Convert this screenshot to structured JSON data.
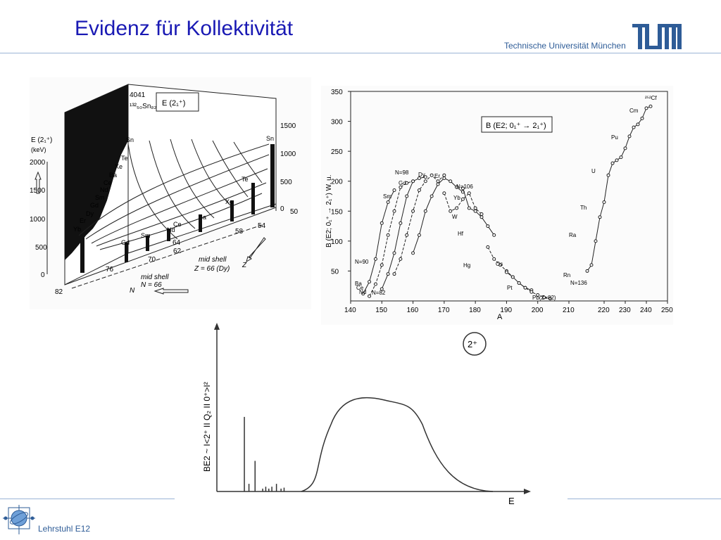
{
  "header": {
    "title": "Evidenz für Kollektivität",
    "university": "Technische Universität München",
    "brand_color": "#1a1ab4",
    "accent_color": "#2e5c97"
  },
  "footer": {
    "chair": "Lehrstuhl E12"
  },
  "fig1": {
    "box_label": "E (2₁⁺)",
    "ylabel": "E (2₁⁺)",
    "yunit": "(keV)",
    "yticks": [
      "2000",
      "1500",
      "1000",
      "500",
      "0"
    ],
    "rticks": [
      "1500",
      "1000",
      "500",
      "0"
    ],
    "sn_value": "4041",
    "sn_label": "¹³²₅₀Sn₈₂",
    "z_side_labels": [
      "Sn",
      "Te",
      "Xe",
      "Ba",
      "Ce",
      "Nd",
      "Sm",
      "Gd",
      "Dy",
      "Er",
      "Yb"
    ],
    "front_labels": [
      "Gd",
      "Sm",
      "Nd",
      "Ce",
      "Ba",
      "Xe",
      "Te",
      "Sn"
    ],
    "n_ticks": [
      "82",
      "76",
      "70",
      "64",
      "62",
      "58",
      "54",
      "50"
    ],
    "mid_shell_z": "mid shell",
    "mid_shell_z_val": "Z = 66 (Dy)",
    "mid_shell_n": "mid shell",
    "mid_shell_n_val": "N = 66",
    "z_axis": "Z",
    "n_axis": "N"
  },
  "chart_data": [
    {
      "type": "line",
      "title": "B (E2; 0₁⁺ → 2₁⁺)",
      "xlabel": "A",
      "ylabel": "B (E2; 0₁⁺ → 2₁⁺) W. u.",
      "xlim": [
        140,
        210
      ],
      "xlim2": [
        200,
        250
      ],
      "ylim": [
        0,
        350
      ],
      "xticks": [
        "140",
        "150",
        "160",
        "170",
        "180",
        "190",
        "200",
        "210"
      ],
      "xticks2": [
        "220",
        "230",
        "240",
        "250"
      ],
      "yticks": [
        "50",
        "100",
        "150",
        "200",
        "250",
        "300",
        "350"
      ],
      "corner_label": "²⁵²Cf",
      "series": [
        {
          "name": "Sm",
          "x": [
            144,
            146,
            148,
            150,
            152,
            154
          ],
          "y": [
            12,
            32,
            70,
            130,
            165,
            185
          ]
        },
        {
          "name": "Gd",
          "x": [
            146,
            148,
            150,
            152,
            154,
            156,
            158,
            160
          ],
          "y": [
            8,
            28,
            60,
            110,
            150,
            190,
            197,
            200
          ]
        },
        {
          "name": "Dy",
          "x": [
            150,
            152,
            154,
            156,
            158,
            160,
            162,
            164
          ],
          "y": [
            20,
            45,
            80,
            130,
            175,
            200,
            205,
            207
          ]
        },
        {
          "name": "Er",
          "x": [
            154,
            156,
            158,
            160,
            162,
            164,
            166,
            168,
            170
          ],
          "y": [
            45,
            70,
            110,
            150,
            185,
            200,
            210,
            200,
            210
          ]
        },
        {
          "name": "Yb",
          "x": [
            160,
            162,
            164,
            166,
            168,
            170,
            172,
            174,
            176
          ],
          "y": [
            80,
            110,
            150,
            175,
            195,
            205,
            200,
            190,
            182
          ]
        },
        {
          "name": "Hf",
          "x": [
            170,
            172,
            174,
            176,
            178,
            180,
            182
          ],
          "y": [
            180,
            150,
            155,
            170,
            180,
            155,
            145
          ]
        },
        {
          "name": "W",
          "x": [
            176,
            178,
            180,
            182,
            184,
            186
          ],
          "y": [
            188,
            155,
            150,
            140,
            125,
            110
          ]
        },
        {
          "name": "Os",
          "x": [
            184,
            186,
            188,
            190,
            192
          ],
          "y": [
            90,
            70,
            60,
            50,
            40
          ]
        },
        {
          "name": "Pt",
          "x": [
            190,
            192,
            194,
            196,
            198
          ],
          "y": [
            48,
            40,
            30,
            22,
            18
          ]
        },
        {
          "name": "Hg",
          "x": [
            194,
            196,
            198,
            200,
            202,
            204
          ],
          "y": [
            30,
            22,
            15,
            10,
            6,
            4
          ]
        },
        {
          "name": "Rn–Cf",
          "x": [
            212,
            214,
            216,
            218,
            220,
            222,
            224,
            226,
            228,
            230,
            232,
            234,
            236,
            238,
            240,
            242
          ],
          "y": [
            50,
            60,
            100,
            140,
            165,
            210,
            230,
            235,
            240,
            255,
            275,
            290,
            295,
            305,
            322,
            325
          ]
        }
      ],
      "annotations": [
        "N=98",
        "N=90",
        "N=106",
        "N=82",
        "N=136",
        "Pb(Z=82)",
        "Rn",
        "Ra",
        "Th",
        "U",
        "Pu",
        "Cm",
        "Hg",
        "Pt",
        "Os",
        "W",
        "Hf",
        "Yb",
        "Er",
        "Dy",
        "Gd",
        "Sm",
        "Nd",
        "Ce",
        "Ba"
      ]
    },
    {
      "type": "line",
      "badge": "2⁺",
      "xlabel": "E",
      "ylabel": "BE2 ~ I<2⁺ II Q₂ II 0⁺>I²",
      "spikes": [
        {
          "x": 0.09,
          "h": 0.78
        },
        {
          "x": 0.105,
          "h": 0.08
        },
        {
          "x": 0.125,
          "h": 0.32
        },
        {
          "x": 0.15,
          "h": 0.03
        },
        {
          "x": 0.16,
          "h": 0.05
        },
        {
          "x": 0.17,
          "h": 0.03
        },
        {
          "x": 0.18,
          "h": 0.05
        },
        {
          "x": 0.195,
          "h": 0.08
        },
        {
          "x": 0.21,
          "h": 0.03
        },
        {
          "x": 0.22,
          "h": 0.04
        }
      ],
      "curve": {
        "center": 0.5,
        "peak": 0.98
      }
    }
  ]
}
